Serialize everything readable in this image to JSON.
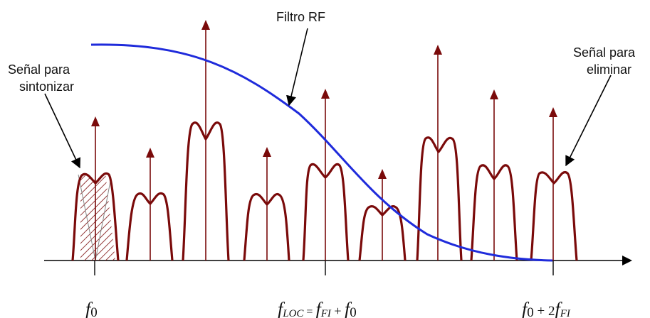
{
  "labels": {
    "rf_filter": "Filtro RF",
    "signal_tune": [
      "Señal para",
      "sintonizar"
    ],
    "signal_remove": [
      "Señal para",
      "eliminar"
    ],
    "f0": {
      "main": "f",
      "sub": "0"
    },
    "floc": {
      "main": "f",
      "sub": "LOC",
      "eq": " = ",
      "fi": "f",
      "fi_sub": "FI",
      "plus": " + ",
      "f": "f",
      "f_sub": "0"
    },
    "f0_2fi": {
      "f": "f",
      "f_sub": "0",
      "plus": " + 2",
      "fi": "f",
      "fi_sub": "FI"
    }
  },
  "colors": {
    "signal": "#7a0a0a",
    "filter": "#1f2bdb",
    "axis": "#000000",
    "hatch": "#7a0a0a"
  }
}
